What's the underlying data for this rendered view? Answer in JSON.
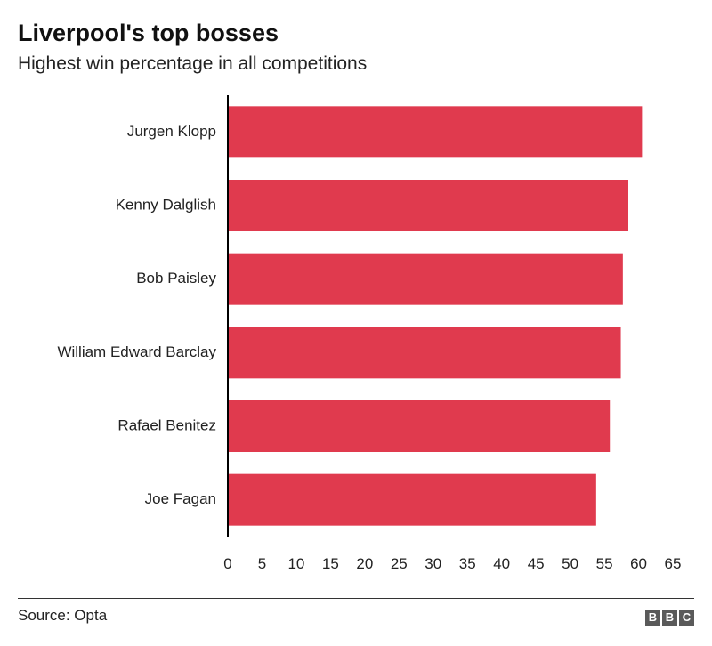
{
  "header": {
    "title": "Liverpool's top bosses",
    "subtitle": "Highest win percentage in all competitions"
  },
  "footer": {
    "source": "Source: Opta",
    "logo_letters": [
      "B",
      "B",
      "C"
    ]
  },
  "colors": {
    "bar": "#e03a4e",
    "axis": "#000000",
    "text": "#222222"
  },
  "chart_data": {
    "type": "bar",
    "orientation": "horizontal",
    "title": "Liverpool's top bosses",
    "subtitle": "Highest win percentage in all competitions",
    "categories": [
      "Jurgen Klopp",
      "Kenny Dalglish",
      "Bob Paisley",
      "William Edward Barclay",
      "Rafael Benitez",
      "Joe Fagan"
    ],
    "values": [
      60.5,
      58.5,
      57.7,
      57.4,
      55.8,
      53.8
    ],
    "xlim": [
      0,
      65
    ],
    "xticks": [
      0,
      5,
      10,
      15,
      20,
      25,
      30,
      35,
      40,
      45,
      50,
      55,
      60,
      65
    ],
    "xlabel": "",
    "ylabel": "",
    "grid": false,
    "legend": "none"
  }
}
